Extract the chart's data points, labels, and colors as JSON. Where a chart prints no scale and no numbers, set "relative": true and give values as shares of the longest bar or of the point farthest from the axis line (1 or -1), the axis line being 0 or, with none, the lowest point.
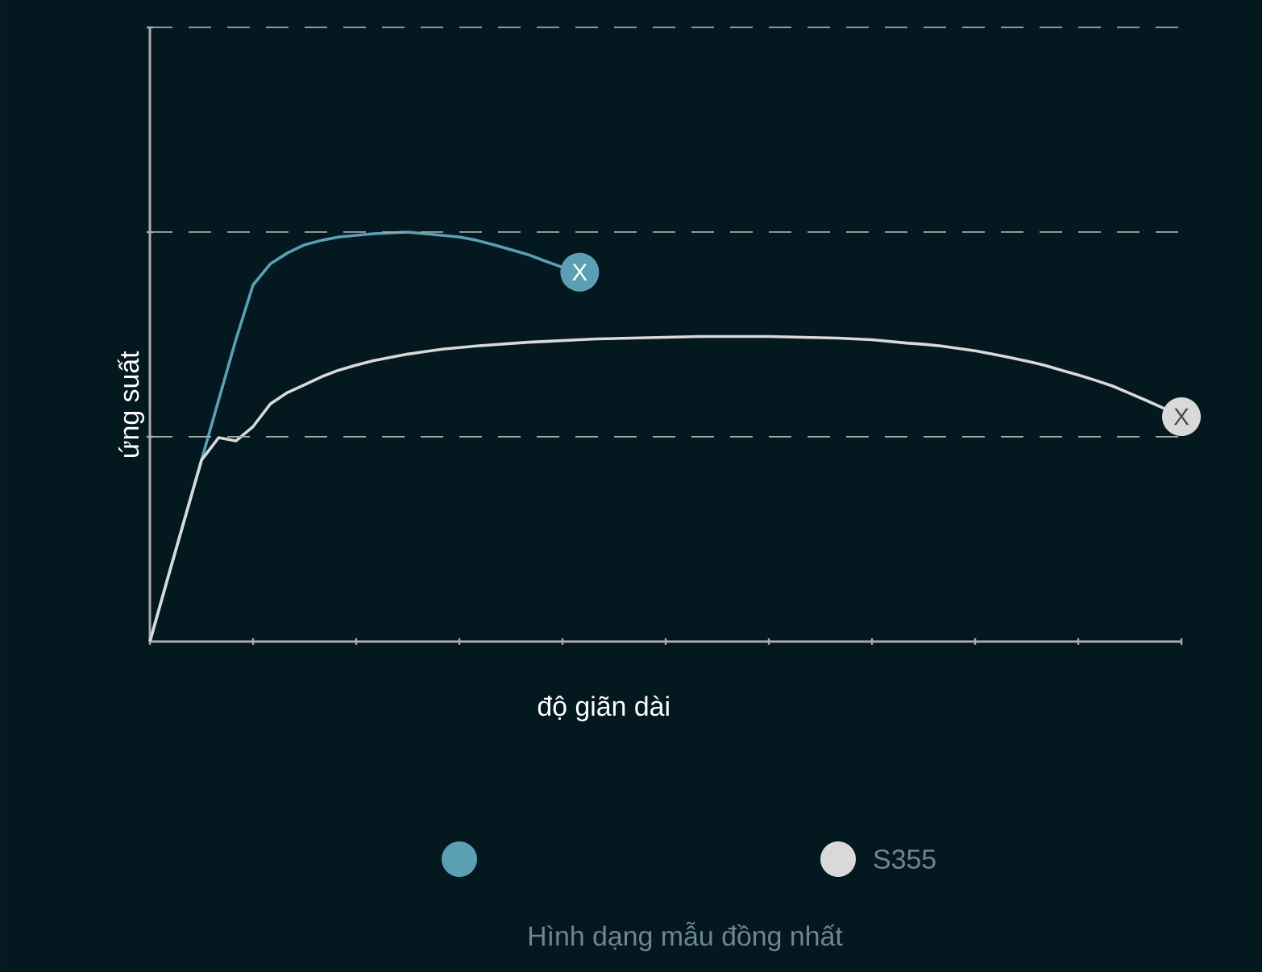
{
  "chart_data": {
    "type": "line",
    "relative": true,
    "xlabel": "độ giãn dài",
    "ylabel": "ứng suất",
    "ref_lines": [
      {
        "axis": "y",
        "value": 0.5,
        "color": "#aaaaaf",
        "line_style": "dashed"
      },
      {
        "axis": "y",
        "value": 1.0,
        "color": "#aaaaaf",
        "line_style": "dashed"
      },
      {
        "axis": "y",
        "value": 1.5,
        "color": "#aaaaaf",
        "line_style": "dashed"
      }
    ],
    "legend": "bottom",
    "marker": "none",
    "line_style": "solid",
    "categories": [
      null,
      null,
      null,
      null,
      null,
      null,
      null,
      null,
      null,
      null,
      null,
      null,
      null,
      null,
      null,
      null,
      null,
      null,
      null,
      null,
      null,
      null,
      null,
      null,
      null,
      null,
      null,
      null,
      null,
      null,
      null,
      null,
      null,
      null,
      null,
      null,
      null,
      null,
      null,
      null,
      null,
      null,
      null,
      null,
      null,
      null,
      null,
      null,
      null,
      null,
      null,
      null,
      null,
      null,
      null,
      null,
      null,
      null,
      null,
      null,
      null
    ],
    "series": [
      {
        "color": "#5b9fb5",
        "values": [
          0,
          0.149,
          0.296,
          0.443,
          0.59,
          0.737,
          0.871,
          0.922,
          0.949,
          0.969,
          0.98,
          0.988,
          0.992,
          0.996,
          0.998,
          1.0,
          0.996,
          0.992,
          0.988,
          0.98,
          0.969,
          0.957,
          0.945,
          0.929,
          0.914,
          0.902,
          null,
          null,
          null,
          null,
          null,
          null,
          null,
          null,
          null,
          null,
          null,
          null,
          null,
          null,
          null,
          null,
          null,
          null,
          null,
          null,
          null,
          null,
          null,
          null,
          null,
          null,
          null,
          null,
          null,
          null,
          null,
          null,
          null,
          null,
          null
        ]
      },
      {
        "name": "S355",
        "color": "#d9d9d9",
        "values": [
          0,
          0.149,
          0.296,
          0.443,
          0.498,
          0.49,
          0.525,
          0.58,
          0.608,
          0.627,
          0.647,
          0.663,
          0.675,
          0.686,
          0.694,
          0.702,
          0.708,
          0.714,
          0.718,
          0.722,
          0.725,
          0.728,
          0.731,
          0.733,
          0.735,
          0.737,
          0.739,
          0.74,
          0.741,
          0.742,
          0.743,
          0.744,
          0.745,
          0.745,
          0.745,
          0.745,
          0.745,
          0.744,
          0.743,
          0.742,
          0.741,
          0.739,
          0.737,
          0.733,
          0.729,
          0.726,
          0.722,
          0.716,
          0.71,
          0.702,
          0.694,
          0.685,
          0.675,
          0.663,
          0.651,
          0.638,
          0.624,
          0.606,
          0.588,
          0.569,
          0.549
        ]
      }
    ],
    "annotations": [
      {
        "text": "X",
        "y": 0.902
      },
      {
        "text": "X",
        "y": 0.549
      },
      "Hình dạng mẫu đồng nhất"
    ]
  }
}
